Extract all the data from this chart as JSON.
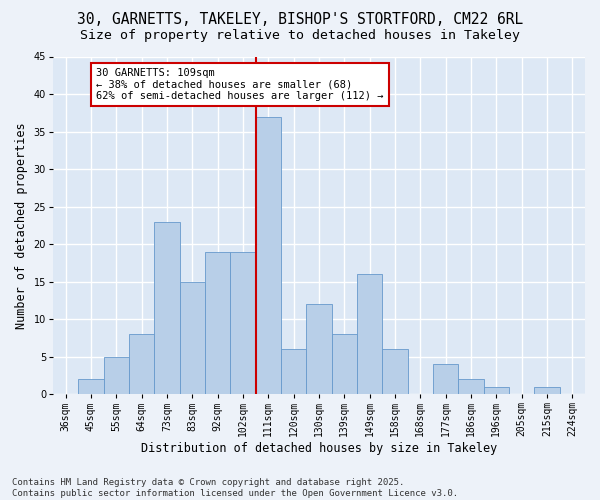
{
  "title1": "30, GARNETTS, TAKELEY, BISHOP'S STORTFORD, CM22 6RL",
  "title2": "Size of property relative to detached houses in Takeley",
  "xlabel": "Distribution of detached houses by size in Takeley",
  "ylabel": "Number of detached properties",
  "categories": [
    "36sqm",
    "45sqm",
    "55sqm",
    "64sqm",
    "73sqm",
    "83sqm",
    "92sqm",
    "102sqm",
    "111sqm",
    "120sqm",
    "130sqm",
    "139sqm",
    "149sqm",
    "158sqm",
    "168sqm",
    "177sqm",
    "186sqm",
    "196sqm",
    "205sqm",
    "215sqm",
    "224sqm"
  ],
  "values": [
    0,
    2,
    5,
    8,
    23,
    15,
    19,
    19,
    37,
    6,
    12,
    8,
    16,
    6,
    0,
    4,
    2,
    1,
    0,
    1,
    0
  ],
  "bar_color": "#b8cfe8",
  "bar_edge_color": "#6699cc",
  "vline_color": "#cc0000",
  "annotation_text": "30 GARNETTS: 109sqm\n← 38% of detached houses are smaller (68)\n62% of semi-detached houses are larger (112) →",
  "annotation_box_color": "#cc0000",
  "ylim": [
    0,
    45
  ],
  "yticks": [
    0,
    5,
    10,
    15,
    20,
    25,
    30,
    35,
    40,
    45
  ],
  "background_color": "#dde8f5",
  "grid_color": "#ffffff",
  "fig_background": "#edf2f9",
  "footer": "Contains HM Land Registry data © Crown copyright and database right 2025.\nContains public sector information licensed under the Open Government Licence v3.0.",
  "title_fontsize": 10.5,
  "subtitle_fontsize": 9.5,
  "axis_label_fontsize": 8.5,
  "tick_fontsize": 7,
  "footer_fontsize": 6.5,
  "ann_fontsize": 7.5
}
